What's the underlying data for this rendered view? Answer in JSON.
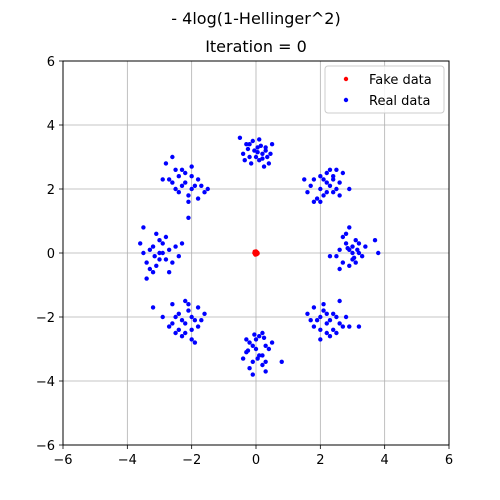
{
  "chart_data": {
    "type": "scatter",
    "title": "- 4log(1-Hellinger^2)",
    "subtitle": "Iteration = 0",
    "xlabel": "",
    "ylabel": "",
    "xlim": [
      -6,
      6
    ],
    "ylim": [
      -6,
      6
    ],
    "xticks": [
      -6,
      -4,
      -2,
      0,
      2,
      4,
      6
    ],
    "yticks": [
      -6,
      -4,
      -2,
      0,
      2,
      4,
      6
    ],
    "grid": true,
    "legend_position": "top-right",
    "series": [
      {
        "name": "Fake data",
        "color": "#ff0000",
        "points": [
          [
            0.0,
            0.0
          ],
          [
            0.02,
            0.03
          ],
          [
            -0.03,
            -0.02
          ],
          [
            0.01,
            -0.04
          ],
          [
            -0.02,
            0.02
          ],
          [
            0.04,
            0.01
          ],
          [
            -0.01,
            -0.01
          ],
          [
            0.03,
            -0.03
          ],
          [
            -0.04,
            0.04
          ],
          [
            0.0,
            0.05
          ],
          [
            0.05,
            -0.01
          ],
          [
            -0.05,
            0.0
          ],
          [
            0.02,
            -0.02
          ],
          [
            -0.02,
            -0.05
          ],
          [
            0.01,
            0.02
          ]
        ]
      },
      {
        "name": "Real data",
        "color": "#0000ff",
        "points": [
          [
            -0.3,
            3.4
          ],
          [
            0.05,
            3.3
          ],
          [
            0.2,
            3.1
          ],
          [
            -0.2,
            3.0
          ],
          [
            0.1,
            2.9
          ],
          [
            0.3,
            3.2
          ],
          [
            -0.1,
            3.5
          ],
          [
            0.4,
            2.8
          ],
          [
            -0.4,
            3.1
          ],
          [
            0.0,
            3.0
          ],
          [
            0.15,
            3.35
          ],
          [
            -0.25,
            3.25
          ],
          [
            0.35,
            3.0
          ],
          [
            -0.5,
            3.6
          ],
          [
            0.25,
            2.7
          ],
          [
            -0.15,
            2.8
          ],
          [
            0.5,
            3.4
          ],
          [
            0.05,
            3.15
          ],
          [
            -0.35,
            2.9
          ],
          [
            0.45,
            3.1
          ],
          [
            0.1,
            3.55
          ],
          [
            -0.05,
            3.2
          ],
          [
            0.2,
            2.95
          ],
          [
            -0.2,
            3.4
          ],
          [
            0.3,
            3.3
          ],
          [
            2.2,
            2.2
          ],
          [
            2.0,
            2.0
          ],
          [
            2.4,
            2.4
          ],
          [
            1.8,
            2.3
          ],
          [
            2.5,
            2.0
          ],
          [
            2.1,
            1.8
          ],
          [
            2.3,
            2.6
          ],
          [
            1.9,
            1.7
          ],
          [
            2.6,
            2.2
          ],
          [
            2.2,
            2.5
          ],
          [
            1.7,
            2.1
          ],
          [
            2.4,
            1.9
          ],
          [
            2.0,
            2.4
          ],
          [
            2.7,
            2.5
          ],
          [
            1.6,
            1.9
          ],
          [
            2.3,
            2.1
          ],
          [
            2.1,
            2.3
          ],
          [
            2.5,
            2.6
          ],
          [
            1.8,
            1.6
          ],
          [
            2.9,
            2.0
          ],
          [
            2.0,
            1.6
          ],
          [
            2.4,
            2.3
          ],
          [
            1.5,
            2.3
          ],
          [
            2.2,
            1.9
          ],
          [
            2.6,
            1.8
          ],
          [
            2.9,
            0.1
          ],
          [
            3.0,
            -0.2
          ],
          [
            2.8,
            0.3
          ],
          [
            3.2,
            0.0
          ],
          [
            2.7,
            -0.3
          ],
          [
            3.1,
            0.4
          ],
          [
            2.6,
            0.1
          ],
          [
            3.3,
            -0.1
          ],
          [
            2.9,
            -0.4
          ],
          [
            3.0,
            0.2
          ],
          [
            2.5,
            -0.1
          ],
          [
            3.4,
            0.2
          ],
          [
            2.8,
            0.6
          ],
          [
            3.1,
            -0.3
          ],
          [
            2.7,
            0.5
          ],
          [
            3.2,
            0.3
          ],
          [
            2.6,
            -0.5
          ],
          [
            3.0,
            0.0
          ],
          [
            3.7,
            0.4
          ],
          [
            2.3,
            -0.1
          ],
          [
            3.8,
            0.0
          ],
          [
            2.9,
            0.8
          ],
          [
            3.05,
            -0.15
          ],
          [
            2.85,
            0.15
          ],
          [
            3.15,
            0.1
          ],
          [
            2.2,
            -2.2
          ],
          [
            2.0,
            -2.0
          ],
          [
            2.4,
            -2.4
          ],
          [
            1.8,
            -2.3
          ],
          [
            2.5,
            -2.0
          ],
          [
            2.1,
            -1.8
          ],
          [
            2.3,
            -2.6
          ],
          [
            1.9,
            -2.1
          ],
          [
            2.6,
            -2.2
          ],
          [
            2.2,
            -2.5
          ],
          [
            1.7,
            -2.1
          ],
          [
            2.4,
            -1.9
          ],
          [
            2.0,
            -2.4
          ],
          [
            2.7,
            -2.3
          ],
          [
            1.6,
            -1.9
          ],
          [
            2.3,
            -2.1
          ],
          [
            2.1,
            -1.6
          ],
          [
            2.5,
            -2.5
          ],
          [
            1.8,
            -1.7
          ],
          [
            2.9,
            -2.3
          ],
          [
            2.0,
            -2.7
          ],
          [
            2.6,
            -1.5
          ],
          [
            3.2,
            -2.3
          ],
          [
            2.2,
            -1.9
          ],
          [
            2.8,
            -2.0
          ],
          [
            0.0,
            -3.0
          ],
          [
            -0.2,
            -2.8
          ],
          [
            0.2,
            -3.2
          ],
          [
            -0.1,
            -3.4
          ],
          [
            0.3,
            -2.9
          ],
          [
            -0.3,
            -3.1
          ],
          [
            0.1,
            -2.6
          ],
          [
            0.2,
            -3.5
          ],
          [
            -0.2,
            -3.6
          ],
          [
            0.4,
            -3.0
          ],
          [
            0.0,
            -2.7
          ],
          [
            -0.3,
            -2.7
          ],
          [
            0.3,
            -3.4
          ],
          [
            0.1,
            -3.2
          ],
          [
            -0.1,
            -2.9
          ],
          [
            0.5,
            -2.8
          ],
          [
            -0.4,
            -3.3
          ],
          [
            0.2,
            -2.5
          ],
          [
            0.8,
            -3.4
          ],
          [
            -0.1,
            -3.8
          ],
          [
            0.3,
            -3.7
          ],
          [
            -0.25,
            -3.05
          ],
          [
            0.05,
            -3.3
          ],
          [
            0.25,
            -2.65
          ],
          [
            -0.05,
            -2.55
          ],
          [
            -2.2,
            -2.2
          ],
          [
            -2.0,
            -2.0
          ],
          [
            -2.4,
            -2.4
          ],
          [
            -1.8,
            -2.3
          ],
          [
            -2.5,
            -2.0
          ],
          [
            -2.1,
            -1.8
          ],
          [
            -2.3,
            -2.6
          ],
          [
            -1.9,
            -2.1
          ],
          [
            -2.6,
            -2.2
          ],
          [
            -2.2,
            -2.5
          ],
          [
            -1.7,
            -2.1
          ],
          [
            -2.4,
            -1.9
          ],
          [
            -2.0,
            -2.4
          ],
          [
            -2.7,
            -2.3
          ],
          [
            -1.6,
            -1.9
          ],
          [
            -2.3,
            -2.1
          ],
          [
            -2.1,
            -1.6
          ],
          [
            -2.5,
            -2.5
          ],
          [
            -1.8,
            -1.7
          ],
          [
            -2.9,
            -2.0
          ],
          [
            -2.0,
            -2.7
          ],
          [
            -2.2,
            -1.5
          ],
          [
            -3.2,
            -1.7
          ],
          [
            -1.9,
            -2.8
          ],
          [
            -2.6,
            -1.6
          ],
          [
            -3.0,
            0.0
          ],
          [
            -3.2,
            0.2
          ],
          [
            -2.8,
            -0.2
          ],
          [
            -3.1,
            -0.4
          ],
          [
            -2.9,
            0.3
          ],
          [
            -3.3,
            0.1
          ],
          [
            -2.7,
            0.1
          ],
          [
            -3.4,
            -0.3
          ],
          [
            -3.0,
            0.4
          ],
          [
            -2.6,
            -0.3
          ],
          [
            -3.5,
            0.0
          ],
          [
            -2.8,
            0.5
          ],
          [
            -3.2,
            -0.6
          ],
          [
            -2.5,
            0.2
          ],
          [
            -3.1,
            0.6
          ],
          [
            -3.6,
            0.3
          ],
          [
            -2.7,
            -0.6
          ],
          [
            -3.3,
            -0.5
          ],
          [
            -2.4,
            -0.1
          ],
          [
            -3.0,
            -0.2
          ],
          [
            -3.5,
            0.8
          ],
          [
            -2.3,
            0.3
          ],
          [
            -3.4,
            -0.8
          ],
          [
            -2.9,
            0.0
          ],
          [
            -3.15,
            -0.1
          ],
          [
            -2.2,
            2.2
          ],
          [
            -2.0,
            2.0
          ],
          [
            -2.4,
            2.4
          ],
          [
            -1.8,
            2.3
          ],
          [
            -2.5,
            2.0
          ],
          [
            -2.1,
            1.8
          ],
          [
            -2.3,
            2.6
          ],
          [
            -1.9,
            2.1
          ],
          [
            -2.6,
            2.2
          ],
          [
            -2.2,
            2.5
          ],
          [
            -1.7,
            2.1
          ],
          [
            -2.4,
            1.9
          ],
          [
            -2.0,
            2.4
          ],
          [
            -2.7,
            2.3
          ],
          [
            -1.6,
            1.9
          ],
          [
            -2.3,
            2.1
          ],
          [
            -2.1,
            1.6
          ],
          [
            -2.5,
            2.6
          ],
          [
            -1.8,
            1.7
          ],
          [
            -2.9,
            2.3
          ],
          [
            -2.0,
            2.7
          ],
          [
            -2.6,
            3.0
          ],
          [
            -1.5,
            2.0
          ],
          [
            -2.1,
            1.1
          ],
          [
            -2.8,
            2.8
          ]
        ]
      }
    ]
  }
}
